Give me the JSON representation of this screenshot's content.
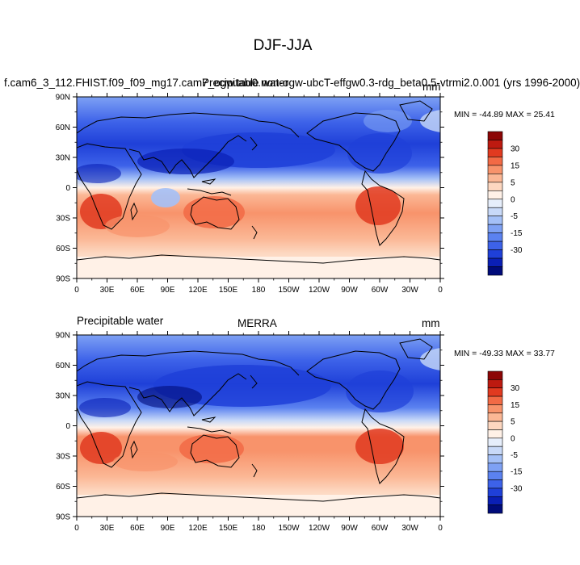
{
  "title": "DJF-JJA",
  "colors": {
    "scale": [
      "#000b7a",
      "#0a1fb5",
      "#1f40d8",
      "#3d62e9",
      "#5b82f0",
      "#7ea1f4",
      "#a4c0f7",
      "#c8d9f8",
      "#e6eefb",
      "#fff1e7",
      "#fdd7c0",
      "#fbb795",
      "#f8936b",
      "#f26a45",
      "#e13a20",
      "#bd1a10",
      "#8c0606"
    ],
    "land": "#000000"
  },
  "colorbar": {
    "labels": [
      "30",
      "15",
      "5",
      "0",
      "-5",
      "-15",
      "-30"
    ]
  },
  "axes": {
    "lat_labels": [
      "90N",
      "60N",
      "30N",
      "0",
      "30S",
      "60S",
      "90S"
    ],
    "lon_labels": [
      "0",
      "30E",
      "60E",
      "90E",
      "120E",
      "150E",
      "180",
      "150W",
      "120W",
      "90W",
      "60W",
      "30W",
      "0"
    ]
  },
  "panels": [
    {
      "left_label": "f.cam6_3_112.FHIST.f09_f09_mg17.cam7_ogw.tau0.non-ogw-ubcT-effgw0.3-rdg_beta0.5-vtrmi2.0.001 (yrs 1996-2000)",
      "overlay_label": "Precipitable water",
      "units": "mm",
      "stats": "MIN = -44.89 MAX =  25.41",
      "min": -44.89,
      "max": 25.41
    },
    {
      "left_label": "Precipitable water",
      "center_label": "MERRA",
      "units": "mm",
      "stats": "MIN = -49.33 MAX =  33.77",
      "min": -49.33,
      "max": 33.77
    }
  ]
}
